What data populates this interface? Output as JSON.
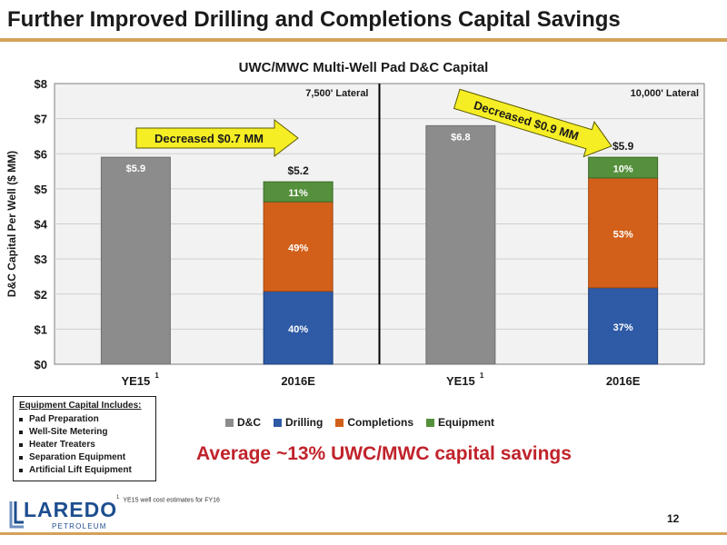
{
  "slide": {
    "title": "Further Improved Drilling and Completions Capital Savings",
    "page_number": "12"
  },
  "colors": {
    "accent_gold": "#d4a25a",
    "dc_gray": "#8c8c8c",
    "drilling_blue": "#2e5aa6",
    "completions_orange": "#d2601a",
    "equipment_green": "#55903c",
    "callout_yellow": "#f6ee25",
    "savings_red": "#c0232b",
    "brand_blue": "#1d4e8f"
  },
  "chart_data": {
    "type": "bar",
    "title": "UWC/MWC Multi-Well Pad D&C Capital",
    "ylabel": "D&C Capital Per Well ($ MM)",
    "ylim": [
      0,
      8
    ],
    "yticks": [
      "$0",
      "$1",
      "$2",
      "$3",
      "$4",
      "$5",
      "$6",
      "$7",
      "$8"
    ],
    "grid": true,
    "legend_position": "bottom",
    "panels": [
      {
        "label": "7,500' Lateral",
        "callout": "Decreased $0.7 MM"
      },
      {
        "label": "10,000' Lateral",
        "callout": "Decreased $0.9 MM"
      }
    ],
    "categories": [
      "YE15",
      "2016E",
      "YE15",
      "2016E"
    ],
    "footnote_marks": [
      "1",
      "",
      "1",
      ""
    ],
    "totals": [
      "$5.9",
      "$5.2",
      "$6.8",
      "$5.9"
    ],
    "series": [
      {
        "name": "D&C",
        "color": "#8c8c8c",
        "values": [
          5.9,
          0,
          6.8,
          0
        ],
        "labels": [
          "$5.9",
          "",
          "$6.8",
          ""
        ]
      },
      {
        "name": "Drilling",
        "color": "#2e5aa6",
        "values": [
          0,
          2.08,
          0,
          2.18
        ],
        "labels": [
          "",
          "40%",
          "",
          "37%"
        ]
      },
      {
        "name": "Completions",
        "color": "#d2601a",
        "values": [
          0,
          2.55,
          0,
          3.13
        ],
        "labels": [
          "",
          "49%",
          "",
          "53%"
        ]
      },
      {
        "name": "Equipment",
        "color": "#55903c",
        "values": [
          0,
          0.57,
          0,
          0.59
        ],
        "labels": [
          "",
          "11%",
          "",
          "10%"
        ]
      }
    ]
  },
  "equipment_box": {
    "heading": "Equipment Capital Includes:",
    "items": [
      "Pad Preparation",
      "Well-Site Metering",
      "Heater Treaters",
      "Separation Equipment",
      "Artificial Lift Equipment"
    ]
  },
  "savings_text": "Average ~13% UWC/MWC capital savings",
  "footnote": {
    "mark": "1",
    "text": "YE15 well cost estimates for FY16"
  },
  "logo": {
    "word": "LAREDO",
    "sub": "PETROLEUM"
  }
}
